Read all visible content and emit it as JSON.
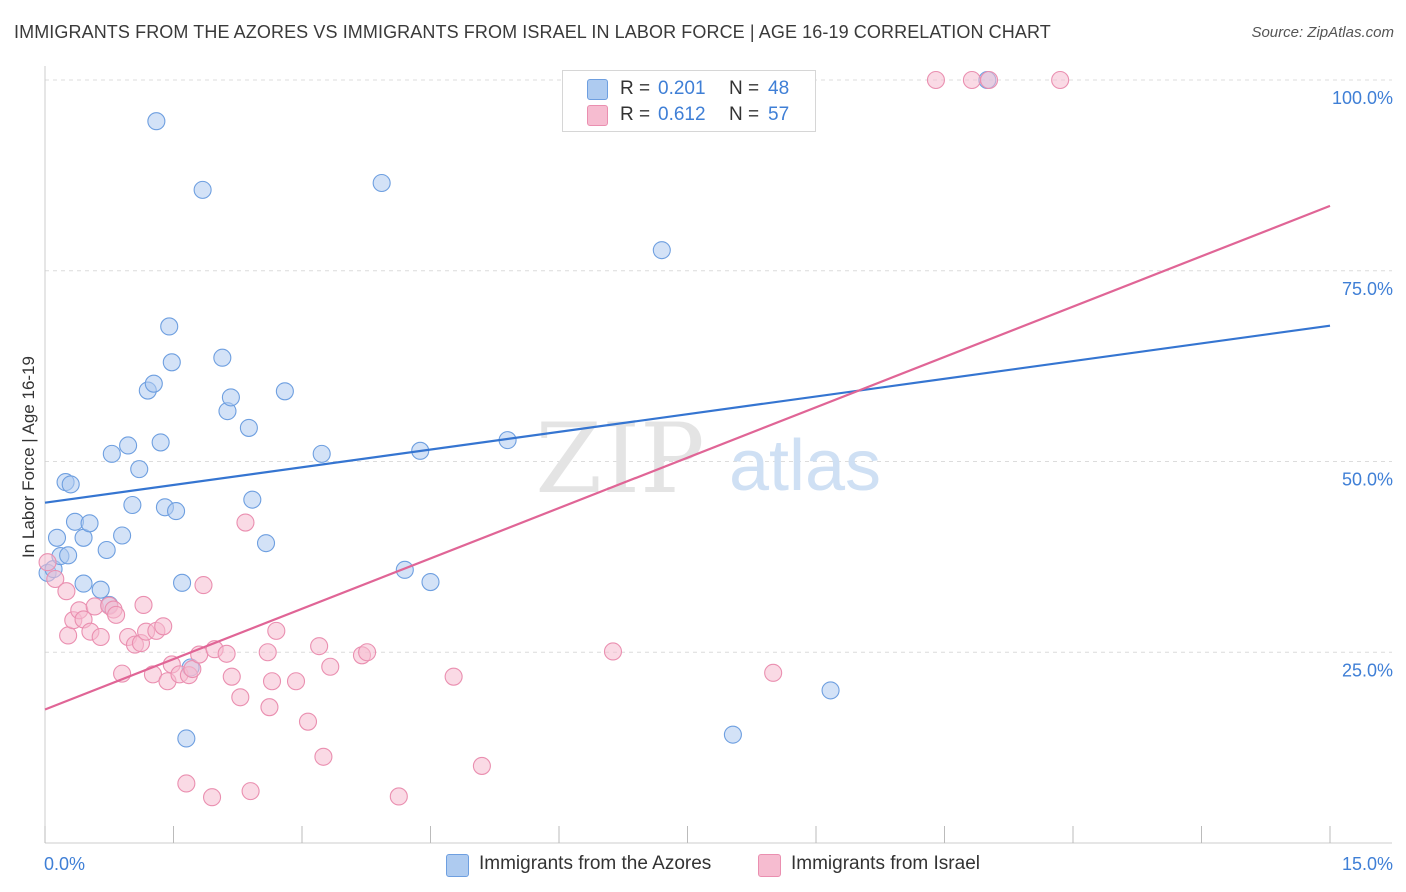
{
  "title": "IMMIGRANTS FROM THE AZORES VS IMMIGRANTS FROM ISRAEL IN LABOR FORCE | AGE 16-19 CORRELATION CHART",
  "source": "Source: ZipAtlas.com",
  "watermark": {
    "zip": "ZIP",
    "atlas": "atlas"
  },
  "legend": {
    "r_label": "R =",
    "n_label": "N =",
    "series": [
      {
        "r": "0.201",
        "n": "48"
      },
      {
        "r": "0.612",
        "n": "57"
      }
    ]
  },
  "colors": {
    "azores_fill": "#aecbf0",
    "azores_stroke": "#6e9fe0",
    "azores_line": "#3575d1",
    "israel_fill": "#f6bcd0",
    "israel_stroke": "#ea8fb0",
    "israel_line": "#e06596",
    "grid": "#dcdcdc",
    "axis_text": "#3f7fd6"
  },
  "chart_data": {
    "type": "scatter",
    "title": "IMMIGRANTS FROM THE AZORES VS IMMIGRANTS FROM ISRAEL IN LABOR FORCE | AGE 16-19 CORRELATION CHART",
    "xlabel": "",
    "ylabel": "In Labor Force | Age 16-19",
    "xlim": [
      0,
      15
    ],
    "ylim": [
      0,
      100
    ],
    "x_tick_labels": [
      "0.0%",
      "15.0%"
    ],
    "y_ticks": [
      25,
      50,
      75,
      100
    ],
    "y_tick_labels": [
      "25.0%",
      "50.0%",
      "75.0%",
      "100.0%"
    ],
    "legend_labels": [
      "Immigrants from the Azores",
      "Immigrants from Israel"
    ],
    "series": [
      {
        "name": "Immigrants from the Azores",
        "trend": {
          "x0": 0,
          "y0": 44.6,
          "x1": 15,
          "y1": 67.8
        },
        "points": [
          [
            0.03,
            35.4
          ],
          [
            0.1,
            35.9
          ],
          [
            0.14,
            40.0
          ],
          [
            0.18,
            37.6
          ],
          [
            0.24,
            47.3
          ],
          [
            0.27,
            37.7
          ],
          [
            0.3,
            47.0
          ],
          [
            0.35,
            42.1
          ],
          [
            0.45,
            40.0
          ],
          [
            0.45,
            34.0
          ],
          [
            0.52,
            41.9
          ],
          [
            0.65,
            33.2
          ],
          [
            0.72,
            38.4
          ],
          [
            0.75,
            31.2
          ],
          [
            0.78,
            51.0
          ],
          [
            0.9,
            40.3
          ],
          [
            0.97,
            52.1
          ],
          [
            1.02,
            44.3
          ],
          [
            1.1,
            49.0
          ],
          [
            1.2,
            59.3
          ],
          [
            1.27,
            60.2
          ],
          [
            1.3,
            94.6
          ],
          [
            1.35,
            52.5
          ],
          [
            1.4,
            44.0
          ],
          [
            1.45,
            67.7
          ],
          [
            1.48,
            63.0
          ],
          [
            1.53,
            43.5
          ],
          [
            1.6,
            34.1
          ],
          [
            1.65,
            13.7
          ],
          [
            1.7,
            23.0
          ],
          [
            1.84,
            85.6
          ],
          [
            2.07,
            63.6
          ],
          [
            2.13,
            56.6
          ],
          [
            2.17,
            58.4
          ],
          [
            2.38,
            54.4
          ],
          [
            2.42,
            45.0
          ],
          [
            2.58,
            39.3
          ],
          [
            2.8,
            59.2
          ],
          [
            3.23,
            51.0
          ],
          [
            3.93,
            86.5
          ],
          [
            4.2,
            35.8
          ],
          [
            4.5,
            34.2
          ],
          [
            4.38,
            51.4
          ],
          [
            5.4,
            52.8
          ],
          [
            7.2,
            77.7
          ],
          [
            8.03,
            14.2
          ],
          [
            9.17,
            20.0
          ],
          [
            11.0,
            100.0
          ]
        ]
      },
      {
        "name": "Immigrants from Israel",
        "trend": {
          "x0": 0,
          "y0": 17.5,
          "x1": 15,
          "y1": 83.5
        },
        "points": [
          [
            0.03,
            36.8
          ],
          [
            0.12,
            34.6
          ],
          [
            0.25,
            33.0
          ],
          [
            0.27,
            27.2
          ],
          [
            0.33,
            29.2
          ],
          [
            0.4,
            30.5
          ],
          [
            0.45,
            29.3
          ],
          [
            0.53,
            27.7
          ],
          [
            0.58,
            31.0
          ],
          [
            0.65,
            27.0
          ],
          [
            0.75,
            31.1
          ],
          [
            0.8,
            30.6
          ],
          [
            0.83,
            29.9
          ],
          [
            0.9,
            22.2
          ],
          [
            0.97,
            27.0
          ],
          [
            1.05,
            26.0
          ],
          [
            1.12,
            26.2
          ],
          [
            1.15,
            31.2
          ],
          [
            1.18,
            27.7
          ],
          [
            1.26,
            22.1
          ],
          [
            1.3,
            27.8
          ],
          [
            1.38,
            28.4
          ],
          [
            1.43,
            21.2
          ],
          [
            1.48,
            23.4
          ],
          [
            1.57,
            22.1
          ],
          [
            1.65,
            7.8
          ],
          [
            1.68,
            22.0
          ],
          [
            1.72,
            22.8
          ],
          [
            1.8,
            24.7
          ],
          [
            1.85,
            33.8
          ],
          [
            1.95,
            6.0
          ],
          [
            1.98,
            25.4
          ],
          [
            2.12,
            24.8
          ],
          [
            2.18,
            21.8
          ],
          [
            2.28,
            19.1
          ],
          [
            2.34,
            42.0
          ],
          [
            2.4,
            6.8
          ],
          [
            2.6,
            25.0
          ],
          [
            2.62,
            17.8
          ],
          [
            2.65,
            21.2
          ],
          [
            2.7,
            27.8
          ],
          [
            2.93,
            21.2
          ],
          [
            3.07,
            15.9
          ],
          [
            3.2,
            25.8
          ],
          [
            3.25,
            11.3
          ],
          [
            3.33,
            23.1
          ],
          [
            3.7,
            24.6
          ],
          [
            3.76,
            25.0
          ],
          [
            4.13,
            6.1
          ],
          [
            4.77,
            21.8
          ],
          [
            5.1,
            10.1
          ],
          [
            6.63,
            25.1
          ],
          [
            8.5,
            22.3
          ],
          [
            10.4,
            100.0
          ],
          [
            10.82,
            100.0
          ],
          [
            11.02,
            100.0
          ],
          [
            11.85,
            100.0
          ]
        ]
      }
    ]
  }
}
